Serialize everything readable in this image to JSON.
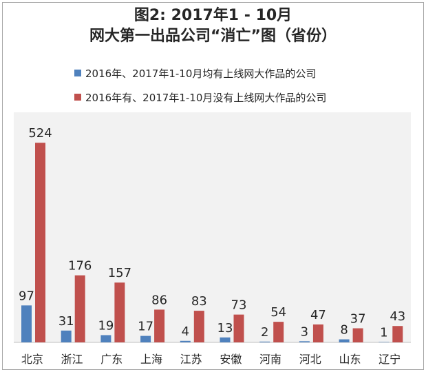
{
  "title_line1": "图2: 2017年1 - 10月",
  "title_line2": "网大第一出品公司“消亡”图（省份）",
  "colors": {
    "series1": "#4f81bd",
    "series2": "#c0504d",
    "plot_bg": "#f2f2f2",
    "axis": "#bfbfbf"
  },
  "chart_data": {
    "type": "bar",
    "title": "图2: 2017年1 - 10月 网大第一出品公司“消亡”图（省份）",
    "xlabel": "",
    "ylabel": "",
    "legend_position": "top",
    "grid": false,
    "ylim": [
      0,
      560
    ],
    "categories": [
      "北京",
      "浙江",
      "广东",
      "上海",
      "江苏",
      "安徽",
      "河南",
      "河北",
      "山东",
      "辽宁"
    ],
    "series": [
      {
        "name": "2016年、2017年1-10月均有上线网大作品的公司",
        "color": "#4f81bd",
        "values": [
          97,
          31,
          19,
          17,
          4,
          13,
          2,
          3,
          8,
          1
        ]
      },
      {
        "name": "2016年有、2017年1-10月没有上线网大作品的公司",
        "color": "#c0504d",
        "values": [
          524,
          176,
          157,
          86,
          83,
          73,
          54,
          47,
          37,
          43
        ]
      }
    ]
  }
}
